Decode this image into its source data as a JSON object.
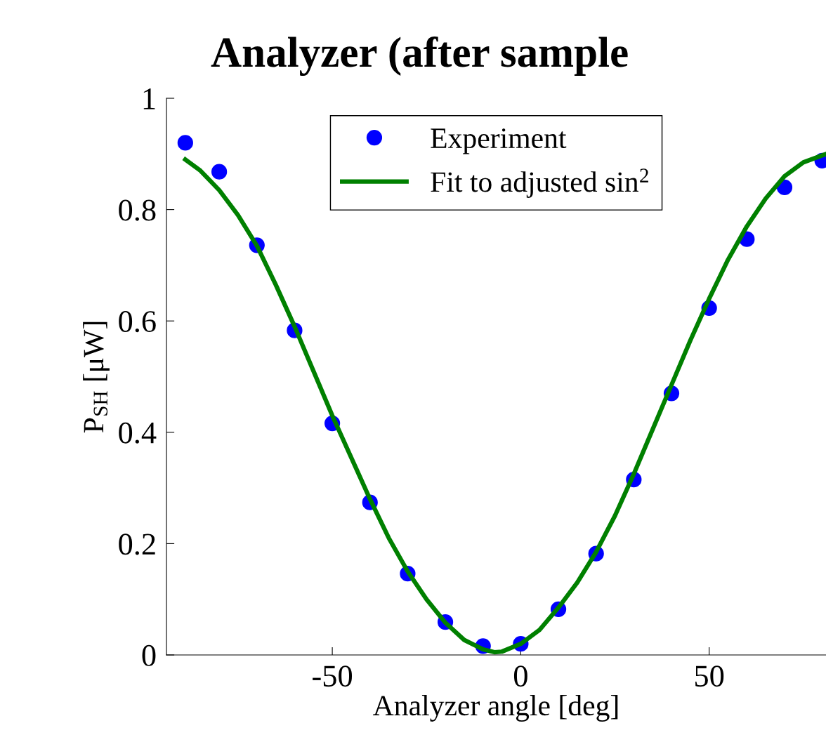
{
  "chart_data": {
    "type": "scatter",
    "title": "Analyzer (after sample",
    "xlabel": "Analyzer angle [deg]",
    "ylabel": "P$_{SH}$ [μW]",
    "xlim": [
      -94,
      81
    ],
    "ylim": [
      0,
      1
    ],
    "xticks": [
      -50,
      0,
      50
    ],
    "yticks": [
      0,
      0.2,
      0.4,
      0.6,
      0.8,
      1
    ],
    "grid": false,
    "legend": "top",
    "marker": "circle",
    "series": [
      {
        "name": "Experiment",
        "color": "#0000ff",
        "x": [
          -89,
          -80,
          -70,
          -60,
          -50,
          -40,
          -30,
          -20,
          -10,
          0,
          10,
          20,
          30,
          40,
          50,
          60,
          70,
          80
        ],
        "values": [
          0.92,
          0.868,
          0.736,
          0.583,
          0.416,
          0.274,
          0.146,
          0.059,
          0.016,
          0.02,
          0.082,
          0.182,
          0.315,
          0.47,
          0.623,
          0.747,
          0.84,
          0.888
        ]
      },
      {
        "name": "Fit to adjusted sin$^{2}$",
        "type": "line",
        "color": "#008000",
        "marker": "none",
        "line_style": "solid",
        "x": [
          -89,
          -85,
          -80,
          -75,
          -70,
          -65,
          -60,
          -55,
          -50,
          -45,
          -40,
          -35,
          -30,
          -25,
          -20,
          -15,
          -10,
          -7,
          -5,
          0,
          5,
          10,
          15,
          20,
          25,
          30,
          35,
          40,
          45,
          50,
          55,
          60,
          65,
          70,
          75,
          81
        ],
        "values": [
          0.89,
          0.87,
          0.835,
          0.79,
          0.735,
          0.665,
          0.59,
          0.51,
          0.43,
          0.355,
          0.28,
          0.21,
          0.15,
          0.1,
          0.058,
          0.027,
          0.01,
          0.005,
          0.006,
          0.02,
          0.045,
          0.085,
          0.13,
          0.185,
          0.25,
          0.325,
          0.405,
          0.485,
          0.565,
          0.64,
          0.71,
          0.77,
          0.82,
          0.86,
          0.885,
          0.9
        ]
      }
    ]
  }
}
